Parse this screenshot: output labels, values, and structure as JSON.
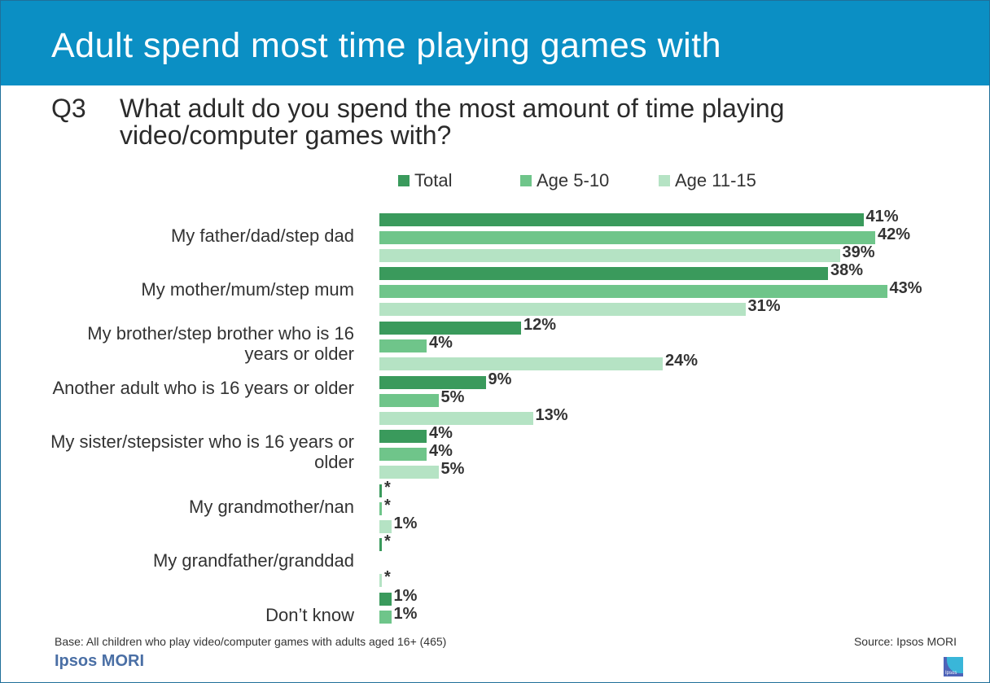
{
  "title": "Adult spend most time playing games with",
  "question": {
    "number": "Q3",
    "text": "What adult do you spend the most amount of time playing video/computer games with?"
  },
  "colors": {
    "header": "#0b8fc4",
    "total": "#3a9a5c",
    "age_5_10": "#6fc58a",
    "age_11_15": "#b5e3c4"
  },
  "footer": {
    "base": "Base: All children who play video/computer games with adults aged 16+ (465)",
    "source": "Source: Ipsos MORI",
    "brand": "Ipsos MORI",
    "logo_text": "Ipsos"
  },
  "chart_data": {
    "type": "bar",
    "orientation": "horizontal",
    "legend_position": "top",
    "xlim": [
      0,
      45
    ],
    "categories": [
      "My father/dad/step dad",
      "My mother/mum/step mum",
      "My brother/step brother who is 16 years or older",
      "Another adult who is 16 years or older",
      "My sister/stepsister who is 16 years or older",
      "My grandmother/nan",
      "My grandfather/granddad",
      "Don’t know"
    ],
    "series": [
      {
        "name": "Total",
        "values": [
          41,
          38,
          12,
          9,
          4,
          0.1,
          0.1,
          1
        ],
        "labels": [
          "41%",
          "38%",
          "12%",
          "9%",
          "4%",
          "*",
          "*",
          "1%"
        ]
      },
      {
        "name": "Age 5-10",
        "values": [
          42,
          43,
          4,
          5,
          4,
          0.1,
          0,
          1
        ],
        "labels": [
          "42%",
          "43%",
          "4%",
          "5%",
          "4%",
          "*",
          "",
          "1%"
        ]
      },
      {
        "name": "Age 11-15",
        "values": [
          39,
          31,
          24,
          13,
          5,
          1,
          0.1,
          0
        ],
        "labels": [
          "39%",
          "31%",
          "24%",
          "13%",
          "5%",
          "1%",
          "*",
          ""
        ]
      }
    ]
  }
}
